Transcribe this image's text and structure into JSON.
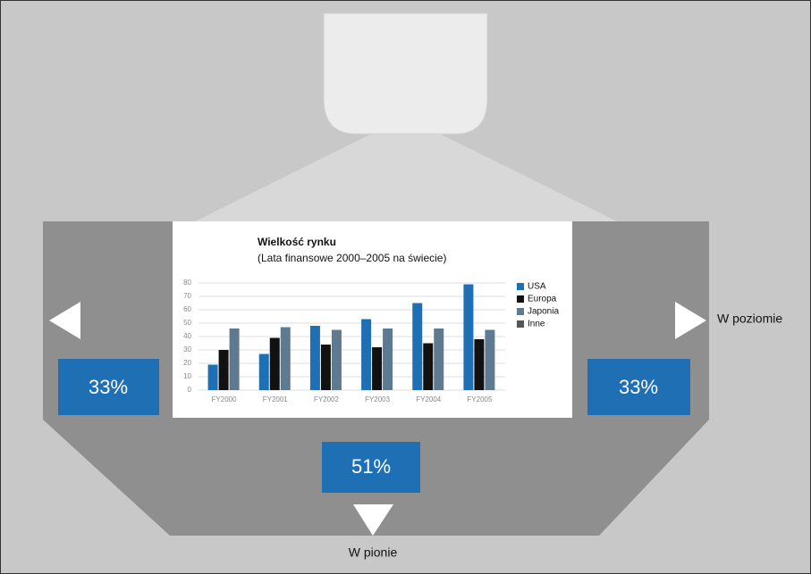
{
  "chart_data": {
    "type": "bar",
    "title": "Wielkość rynku",
    "subtitle": "(Lata finansowe 2000–2005 na świecie)",
    "categories": [
      "FY2000",
      "FY2001",
      "FY2002",
      "FY2003",
      "FY2004",
      "FY2005"
    ],
    "series": [
      {
        "name": "USA",
        "color": "#1f6fb5",
        "values": [
          19,
          27,
          48,
          53,
          65,
          79
        ]
      },
      {
        "name": "Europa",
        "color": "#111111",
        "values": [
          30,
          39,
          34,
          32,
          35,
          38
        ]
      },
      {
        "name": "Japonia",
        "color": "#5e7a90",
        "values": [
          46,
          47,
          45,
          46,
          46,
          45
        ]
      },
      {
        "name": "Inne",
        "color": "#555555",
        "values": [
          null,
          null,
          null,
          null,
          null,
          null
        ]
      }
    ],
    "ylim": [
      0,
      80
    ],
    "yticks": [
      0,
      10,
      20,
      30,
      40,
      50,
      60,
      70,
      80
    ],
    "grid": true
  },
  "labels": {
    "left_shift": "33%",
    "right_shift": "33%",
    "vertical_shift": "51%",
    "horizontal": "W poziomie",
    "vertical": "W pionie"
  }
}
